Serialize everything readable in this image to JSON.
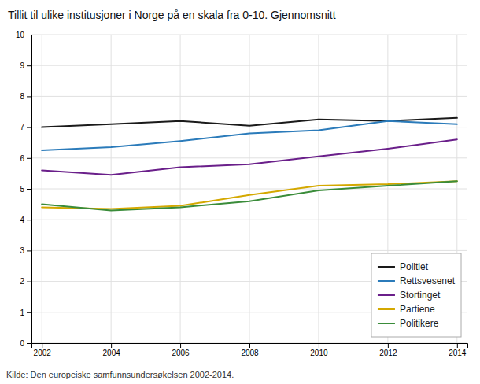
{
  "chart_data": {
    "type": "line",
    "title": "Tillit til ulike institusjoner i Norge på en skala fra 0-10. Gjennomsnitt",
    "caption": "Kilde: Den europeiske samfunnsundersøkelsen 2002-2014.",
    "x": [
      2002,
      2004,
      2006,
      2008,
      2010,
      2012,
      2014
    ],
    "series": [
      {
        "name": "Politiet",
        "color": "#1a1a1a",
        "values": [
          7.0,
          7.1,
          7.2,
          7.05,
          7.25,
          7.2,
          7.3
        ]
      },
      {
        "name": "Rettsvesenet",
        "color": "#2b7bba",
        "values": [
          6.25,
          6.35,
          6.55,
          6.8,
          6.9,
          7.2,
          7.1
        ]
      },
      {
        "name": "Stortinget",
        "color": "#6a1f8a",
        "values": [
          5.6,
          5.45,
          5.7,
          5.8,
          6.05,
          6.3,
          6.6
        ]
      },
      {
        "name": "Partiene",
        "color": "#d4a800",
        "values": [
          4.4,
          4.35,
          4.45,
          4.8,
          5.1,
          5.15,
          5.25
        ]
      },
      {
        "name": "Politikere",
        "color": "#3a8c3a",
        "values": [
          4.5,
          4.3,
          4.4,
          4.6,
          4.95,
          5.1,
          5.25
        ]
      }
    ],
    "xlim": [
      2001.7,
      2014.3
    ],
    "xticks": [
      2002,
      2004,
      2006,
      2008,
      2010,
      2012,
      2014
    ],
    "ylim": [
      0,
      10
    ],
    "yticks": [
      0,
      1,
      2,
      3,
      4,
      5,
      6,
      7,
      8,
      9,
      10
    ],
    "grid": true,
    "legend": "lower right"
  }
}
